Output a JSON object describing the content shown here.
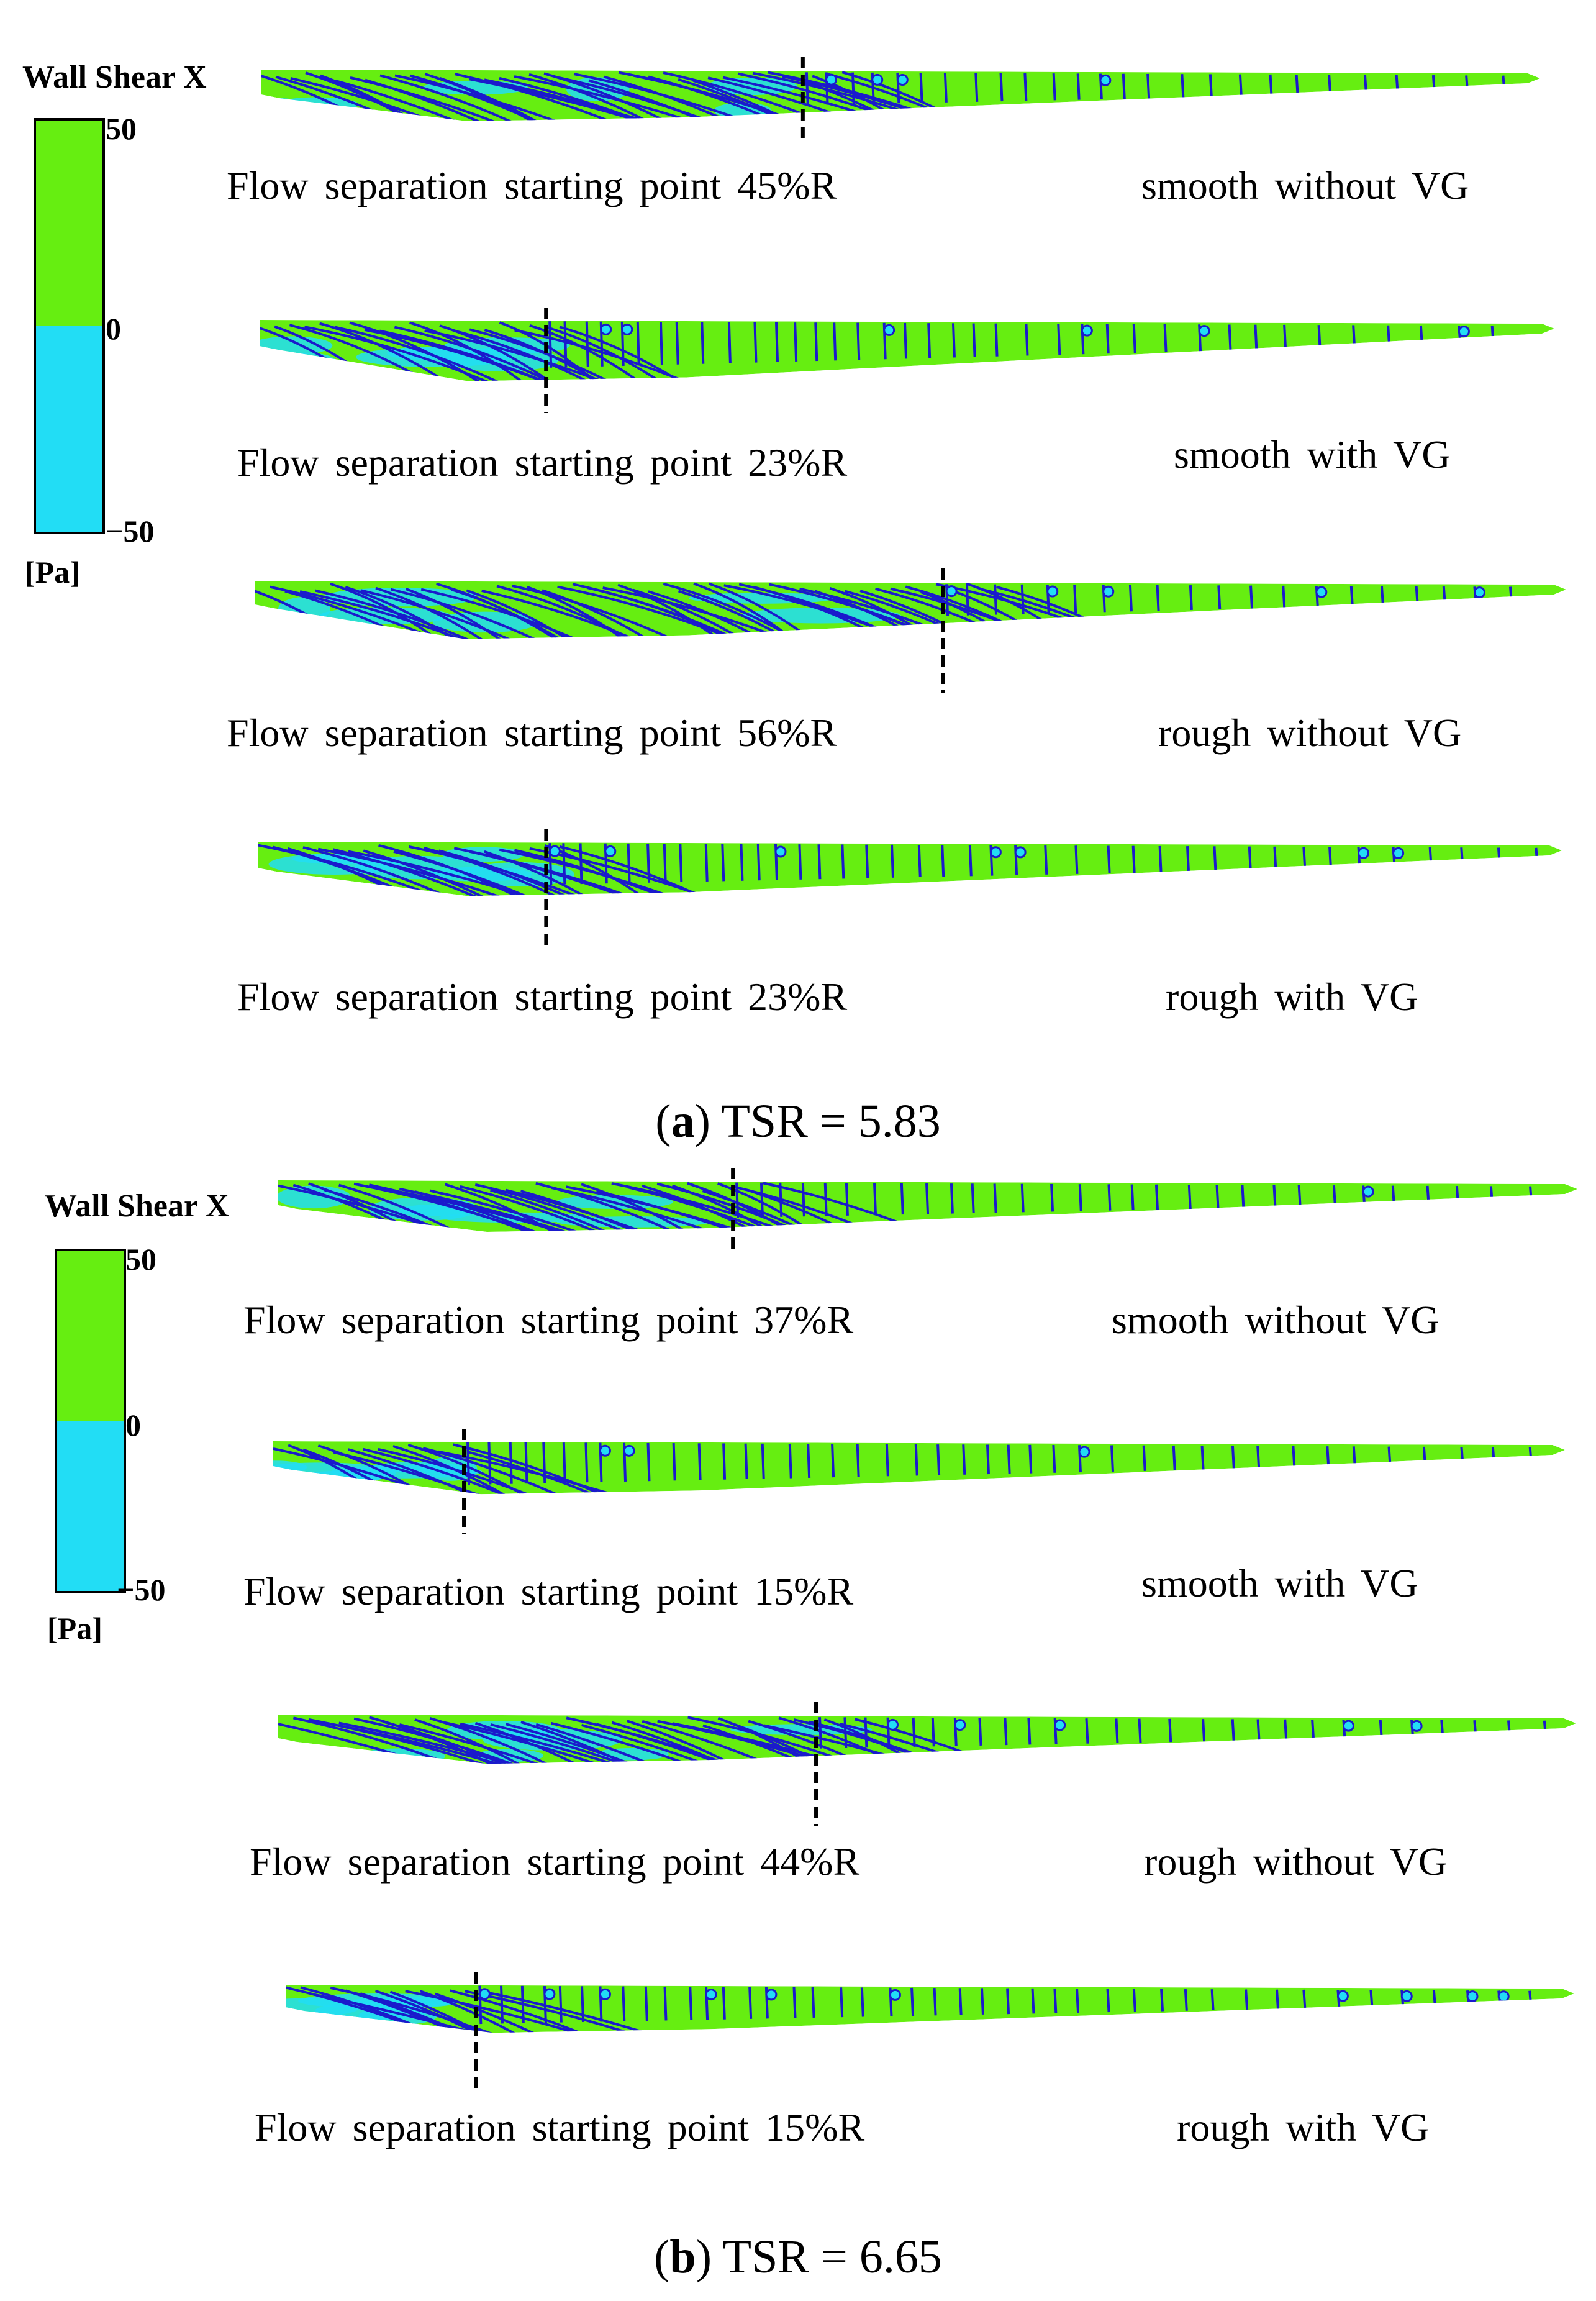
{
  "legend": {
    "title": "Wall Shear X",
    "max": "50",
    "mid": "0",
    "min": "−50",
    "unit": "[Pa]",
    "colors": {
      "positive": "#66ee11",
      "negative": "#22ddf5",
      "streamline": "#1a1acc"
    }
  },
  "panels": [
    {
      "letter": "a",
      "caption": "TSR = 5.83",
      "blades": [
        {
          "separation": "Flow separation  starting point 45%R",
          "condition": "smooth without VG",
          "percent": 45
        },
        {
          "separation": "Flow separation  starting point 23%R",
          "condition": "smooth with VG",
          "percent": 23
        },
        {
          "separation": "Flow separation  starting point 56%R",
          "condition": "rough without VG",
          "percent": 56
        },
        {
          "separation": "Flow separation  starting point 23%R",
          "condition": "rough with VG",
          "percent": 23
        }
      ]
    },
    {
      "letter": "b",
      "caption": "TSR = 6.65",
      "blades": [
        {
          "separation": "Flow separation  starting point 37%R",
          "condition": "smooth without VG",
          "percent": 37
        },
        {
          "separation": "Flow separation  starting point 15%R",
          "condition": "smooth with VG",
          "percent": 15
        },
        {
          "separation": "Flow separation  starting point 44%R",
          "condition": "rough without VG",
          "percent": 44
        },
        {
          "separation": "Flow separation  starting point 15%R",
          "condition": "rough with VG",
          "percent": 15
        }
      ]
    }
  ]
}
